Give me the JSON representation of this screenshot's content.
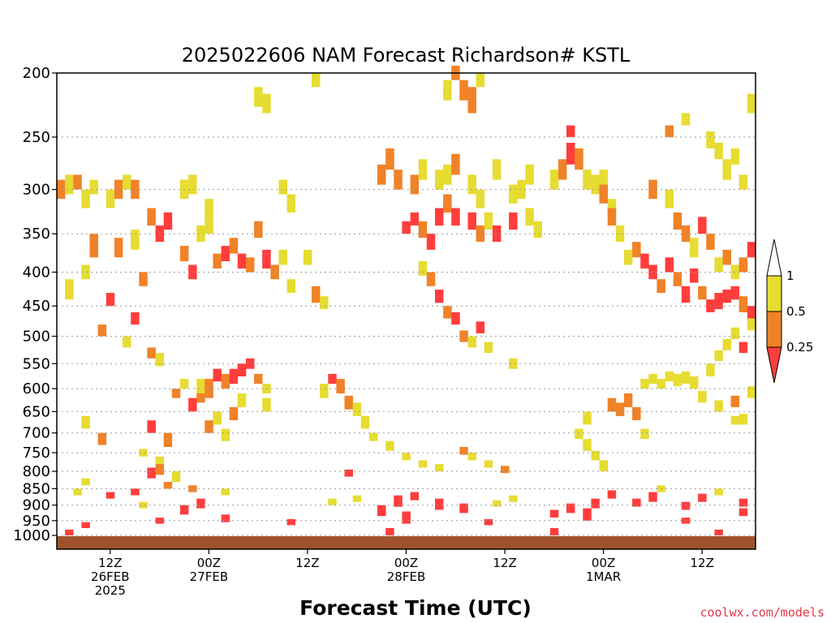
{
  "chart_data": {
    "type": "heatmap",
    "title": "2025022606 NAM Forecast Richardson# KSTL",
    "xlabel": "Forecast Time (UTC)",
    "ylabel": "",
    "y_scale": "log",
    "y_reversed": true,
    "ylim": [
      1000,
      200
    ],
    "yticks": [
      200,
      250,
      300,
      350,
      400,
      450,
      500,
      550,
      600,
      650,
      700,
      750,
      800,
      850,
      900,
      950,
      1000
    ],
    "x_range_hours": [
      0,
      84
    ],
    "xticks": [
      {
        "hour": 6,
        "lines": [
          "12Z",
          "26FEB",
          "2025"
        ]
      },
      {
        "hour": 18,
        "lines": [
          "00Z",
          "27FEB"
        ]
      },
      {
        "hour": 30,
        "lines": [
          "12Z"
        ]
      },
      {
        "hour": 42,
        "lines": [
          "00Z",
          "28FEB"
        ]
      },
      {
        "hour": 54,
        "lines": [
          "12Z"
        ]
      },
      {
        "hour": 66,
        "lines": [
          "00Z",
          "1MAR"
        ]
      },
      {
        "hour": 78,
        "lines": [
          "12Z"
        ]
      }
    ],
    "grid": "dotted horizontal",
    "classes": [
      {
        "label": "< 0.25",
        "color": "#ff3d3d"
      },
      {
        "label": "0.25 - 0.5",
        "color": "#f08228"
      },
      {
        "label": "0.5 - 1",
        "color": "#e6dc32"
      }
    ],
    "legend_values": [
      "1",
      "0.5",
      "0.25"
    ],
    "legend_position": "right",
    "ground_color": "#a0522d",
    "cells": [
      [
        1,
        1000,
        980,
        0
      ],
      [
        40,
        1000,
        975,
        0
      ],
      [
        60,
        1000,
        975,
        0
      ],
      [
        80,
        1000,
        980,
        0
      ],
      [
        3,
        975,
        955,
        0
      ],
      [
        12,
        960,
        940,
        0
      ],
      [
        20,
        955,
        930,
        0
      ],
      [
        28,
        965,
        945,
        0
      ],
      [
        42,
        960,
        920,
        0
      ],
      [
        52,
        965,
        945,
        0
      ],
      [
        64,
        950,
        910,
        0
      ],
      [
        76,
        960,
        940,
        0
      ],
      [
        15,
        930,
        900,
        0
      ],
      [
        17,
        910,
        880,
        0
      ],
      [
        39,
        935,
        900,
        0
      ],
      [
        41,
        905,
        870,
        0
      ],
      [
        43,
        885,
        860,
        0
      ],
      [
        46,
        915,
        880,
        0
      ],
      [
        49,
        925,
        895,
        0
      ],
      [
        60,
        940,
        915,
        0
      ],
      [
        62,
        925,
        895,
        0
      ],
      [
        65,
        910,
        880,
        0
      ],
      [
        67,
        880,
        855,
        0
      ],
      [
        70,
        905,
        880,
        0
      ],
      [
        72,
        890,
        860,
        0
      ],
      [
        76,
        915,
        890,
        0
      ],
      [
        78,
        890,
        865,
        0
      ],
      [
        83,
        905,
        880,
        0
      ],
      [
        83,
        935,
        910,
        0
      ],
      [
        6,
        880,
        860,
        0
      ],
      [
        9,
        870,
        850,
        0
      ],
      [
        13,
        850,
        830,
        1
      ],
      [
        14,
        830,
        800,
        2
      ],
      [
        16,
        860,
        840,
        1
      ],
      [
        20,
        870,
        850,
        2
      ],
      [
        10,
        910,
        890,
        2
      ],
      [
        33,
        900,
        880,
        2
      ],
      [
        36,
        890,
        870,
        2
      ],
      [
        53,
        905,
        885,
        2
      ],
      [
        55,
        890,
        870,
        2
      ],
      [
        73,
        860,
        840,
        2
      ],
      [
        80,
        870,
        850,
        2
      ],
      [
        2,
        870,
        850,
        2
      ],
      [
        3,
        840,
        820,
        2
      ],
      [
        11,
        820,
        790,
        0
      ],
      [
        12,
        810,
        780,
        1
      ],
      [
        3,
        690,
        660,
        2
      ],
      [
        5,
        730,
        700,
        1
      ],
      [
        11,
        700,
        670,
        0
      ],
      [
        13,
        735,
        700,
        1
      ],
      [
        10,
        760,
        740,
        2
      ],
      [
        12,
        780,
        760,
        2
      ],
      [
        17,
        610,
        580,
        2
      ],
      [
        18,
        700,
        670,
        1
      ],
      [
        19,
        680,
        650,
        2
      ],
      [
        20,
        720,
        690,
        2
      ],
      [
        21,
        670,
        640,
        1
      ],
      [
        5,
        500,
        480,
        1
      ],
      [
        8,
        520,
        500,
        2
      ],
      [
        9,
        480,
        460,
        0
      ],
      [
        11,
        540,
        520,
        1
      ],
      [
        12,
        555,
        530,
        2
      ],
      [
        14,
        620,
        600,
        1
      ],
      [
        15,
        600,
        580,
        2
      ],
      [
        16,
        650,
        620,
        0
      ],
      [
        17,
        630,
        610,
        1
      ],
      [
        18,
        620,
        580,
        1
      ],
      [
        19,
        585,
        560,
        0
      ],
      [
        20,
        600,
        570,
        1
      ],
      [
        21,
        590,
        560,
        0
      ],
      [
        22,
        575,
        550,
        0
      ],
      [
        23,
        560,
        540,
        0
      ],
      [
        24,
        590,
        570,
        1
      ],
      [
        25,
        610,
        590,
        2
      ],
      [
        22,
        640,
        610,
        2
      ],
      [
        25,
        650,
        620,
        2
      ],
      [
        32,
        620,
        590,
        2
      ],
      [
        33,
        590,
        570,
        0
      ],
      [
        34,
        610,
        580,
        1
      ],
      [
        35,
        645,
        615,
        1
      ],
      [
        36,
        660,
        630,
        2
      ],
      [
        37,
        690,
        660,
        2
      ],
      [
        38,
        720,
        700,
        2
      ],
      [
        40,
        745,
        720,
        2
      ],
      [
        42,
        770,
        750,
        2
      ],
      [
        44,
        790,
        770,
        2
      ],
      [
        46,
        800,
        780,
        2
      ],
      [
        35,
        815,
        795,
        0
      ],
      [
        49,
        755,
        735,
        1
      ],
      [
        50,
        770,
        750,
        2
      ],
      [
        52,
        790,
        770,
        2
      ],
      [
        54,
        805,
        785,
        1
      ],
      [
        63,
        715,
        690,
        2
      ],
      [
        64,
        745,
        715,
        2
      ],
      [
        65,
        770,
        745,
        2
      ],
      [
        66,
        800,
        770,
        2
      ],
      [
        64,
        680,
        650,
        2
      ],
      [
        67,
        650,
        620,
        1
      ],
      [
        68,
        660,
        630,
        1
      ],
      [
        69,
        640,
        610,
        1
      ],
      [
        70,
        670,
        640,
        1
      ],
      [
        71,
        715,
        690,
        2
      ],
      [
        71,
        600,
        580,
        2
      ],
      [
        72,
        590,
        570,
        2
      ],
      [
        73,
        600,
        580,
        2
      ],
      [
        74,
        585,
        565,
        2
      ],
      [
        75,
        595,
        570,
        2
      ],
      [
        76,
        590,
        565,
        2
      ],
      [
        77,
        600,
        575,
        2
      ],
      [
        78,
        630,
        605,
        2
      ],
      [
        80,
        650,
        625,
        2
      ],
      [
        82,
        640,
        615,
        1
      ],
      [
        83,
        680,
        655,
        2
      ],
      [
        84,
        620,
        595,
        2
      ],
      [
        82,
        680,
        660,
        2
      ],
      [
        1,
        440,
        410,
        2
      ],
      [
        3,
        410,
        390,
        2
      ],
      [
        4,
        380,
        350,
        1
      ],
      [
        6,
        450,
        430,
        0
      ],
      [
        7,
        380,
        355,
        1
      ],
      [
        9,
        370,
        345,
        2
      ],
      [
        10,
        420,
        400,
        1
      ],
      [
        11,
        340,
        320,
        1
      ],
      [
        12,
        360,
        340,
        0
      ],
      [
        13,
        345,
        325,
        0
      ],
      [
        15,
        385,
        365,
        1
      ],
      [
        16,
        410,
        390,
        0
      ],
      [
        17,
        360,
        340,
        2
      ],
      [
        18,
        350,
        330,
        2
      ],
      [
        19,
        395,
        375,
        1
      ],
      [
        20,
        385,
        365,
        0
      ],
      [
        21,
        375,
        355,
        1
      ],
      [
        22,
        395,
        375,
        0
      ],
      [
        23,
        400,
        380,
        1
      ],
      [
        24,
        355,
        335,
        1
      ],
      [
        25,
        395,
        370,
        0
      ],
      [
        26,
        410,
        390,
        1
      ],
      [
        27,
        390,
        370,
        2
      ],
      [
        28,
        430,
        410,
        2
      ],
      [
        30,
        390,
        370,
        2
      ],
      [
        31,
        445,
        420,
        1
      ],
      [
        32,
        455,
        435,
        2
      ],
      [
        0,
        310,
        290,
        1
      ],
      [
        1,
        305,
        285,
        2
      ],
      [
        2,
        300,
        285,
        1
      ],
      [
        3,
        320,
        300,
        2
      ],
      [
        4,
        305,
        290,
        2
      ],
      [
        6,
        320,
        300,
        2
      ],
      [
        7,
        310,
        290,
        1
      ],
      [
        8,
        300,
        285,
        2
      ],
      [
        9,
        310,
        290,
        1
      ],
      [
        15,
        310,
        290,
        2
      ],
      [
        16,
        305,
        285,
        2
      ],
      [
        18,
        330,
        310,
        2
      ],
      [
        24,
        225,
        210,
        2
      ],
      [
        25,
        230,
        215,
        2
      ],
      [
        27,
        305,
        290,
        2
      ],
      [
        28,
        325,
        305,
        2
      ],
      [
        31,
        210,
        200,
        2
      ],
      [
        42,
        350,
        335,
        0
      ],
      [
        43,
        340,
        325,
        0
      ],
      [
        44,
        355,
        335,
        1
      ],
      [
        45,
        370,
        350,
        0
      ],
      [
        46,
        340,
        320,
        0
      ],
      [
        47,
        325,
        305,
        1
      ],
      [
        48,
        340,
        320,
        0
      ],
      [
        50,
        345,
        325,
        0
      ],
      [
        51,
        360,
        340,
        1
      ],
      [
        52,
        345,
        325,
        2
      ],
      [
        53,
        360,
        340,
        0
      ],
      [
        55,
        345,
        325,
        0
      ],
      [
        57,
        340,
        320,
        2
      ],
      [
        58,
        355,
        335,
        2
      ],
      [
        39,
        295,
        275,
        1
      ],
      [
        40,
        280,
        260,
        1
      ],
      [
        41,
        300,
        280,
        1
      ],
      [
        43,
        305,
        285,
        1
      ],
      [
        44,
        290,
        270,
        2
      ],
      [
        46,
        300,
        280,
        2
      ],
      [
        47,
        295,
        275,
        2
      ],
      [
        48,
        285,
        265,
        1
      ],
      [
        50,
        305,
        285,
        2
      ],
      [
        51,
        320,
        300,
        2
      ],
      [
        53,
        290,
        270,
        2
      ],
      [
        55,
        315,
        295,
        2
      ],
      [
        56,
        310,
        290,
        2
      ],
      [
        57,
        295,
        275,
        2
      ],
      [
        44,
        405,
        385,
        2
      ],
      [
        45,
        420,
        400,
        1
      ],
      [
        46,
        445,
        425,
        0
      ],
      [
        47,
        470,
        450,
        1
      ],
      [
        48,
        480,
        460,
        0
      ],
      [
        49,
        510,
        490,
        1
      ],
      [
        50,
        520,
        500,
        2
      ],
      [
        51,
        495,
        475,
        0
      ],
      [
        52,
        530,
        510,
        2
      ],
      [
        55,
        560,
        540,
        2
      ],
      [
        47,
        220,
        205,
        2
      ],
      [
        48,
        205,
        195,
        1
      ],
      [
        49,
        220,
        205,
        1
      ],
      [
        50,
        230,
        210,
        1
      ],
      [
        51,
        210,
        200,
        2
      ],
      [
        60,
        300,
        280,
        2
      ],
      [
        61,
        290,
        270,
        1
      ],
      [
        62,
        275,
        255,
        0
      ],
      [
        63,
        280,
        260,
        1
      ],
      [
        64,
        300,
        280,
        2
      ],
      [
        65,
        305,
        285,
        2
      ],
      [
        66,
        300,
        280,
        2
      ],
      [
        67,
        330,
        310,
        2
      ],
      [
        62,
        250,
        240,
        0
      ],
      [
        66,
        315,
        295,
        1
      ],
      [
        67,
        340,
        320,
        1
      ],
      [
        68,
        360,
        340,
        2
      ],
      [
        69,
        390,
        370,
        2
      ],
      [
        70,
        380,
        360,
        1
      ],
      [
        71,
        395,
        375,
        0
      ],
      [
        72,
        410,
        390,
        0
      ],
      [
        73,
        430,
        410,
        1
      ],
      [
        74,
        400,
        380,
        0
      ],
      [
        75,
        420,
        400,
        1
      ],
      [
        76,
        445,
        420,
        0
      ],
      [
        77,
        415,
        395,
        0
      ],
      [
        78,
        440,
        420,
        1
      ],
      [
        79,
        460,
        440,
        0
      ],
      [
        80,
        455,
        430,
        0
      ],
      [
        81,
        445,
        425,
        0
      ],
      [
        82,
        440,
        420,
        0
      ],
      [
        83,
        460,
        435,
        1
      ],
      [
        84,
        470,
        450,
        0
      ],
      [
        72,
        310,
        290,
        1
      ],
      [
        74,
        320,
        300,
        2
      ],
      [
        75,
        345,
        325,
        1
      ],
      [
        76,
        360,
        340,
        1
      ],
      [
        77,
        380,
        355,
        2
      ],
      [
        78,
        350,
        330,
        0
      ],
      [
        79,
        370,
        350,
        1
      ],
      [
        80,
        400,
        380,
        2
      ],
      [
        81,
        390,
        370,
        1
      ],
      [
        82,
        410,
        390,
        2
      ],
      [
        83,
        400,
        380,
        1
      ],
      [
        84,
        380,
        360,
        0
      ],
      [
        74,
        250,
        240,
        1
      ],
      [
        76,
        240,
        230,
        2
      ],
      [
        79,
        260,
        245,
        2
      ],
      [
        80,
        270,
        255,
        2
      ],
      [
        81,
        290,
        270,
        2
      ],
      [
        82,
        275,
        260,
        2
      ],
      [
        83,
        300,
        285,
        2
      ],
      [
        84,
        230,
        215,
        2
      ],
      [
        79,
        575,
        550,
        2
      ],
      [
        80,
        545,
        525,
        2
      ],
      [
        81,
        525,
        505,
        2
      ],
      [
        82,
        505,
        485,
        2
      ],
      [
        83,
        530,
        510,
        0
      ],
      [
        84,
        490,
        470,
        2
      ]
    ]
  },
  "credit": "coolwx.com/models"
}
